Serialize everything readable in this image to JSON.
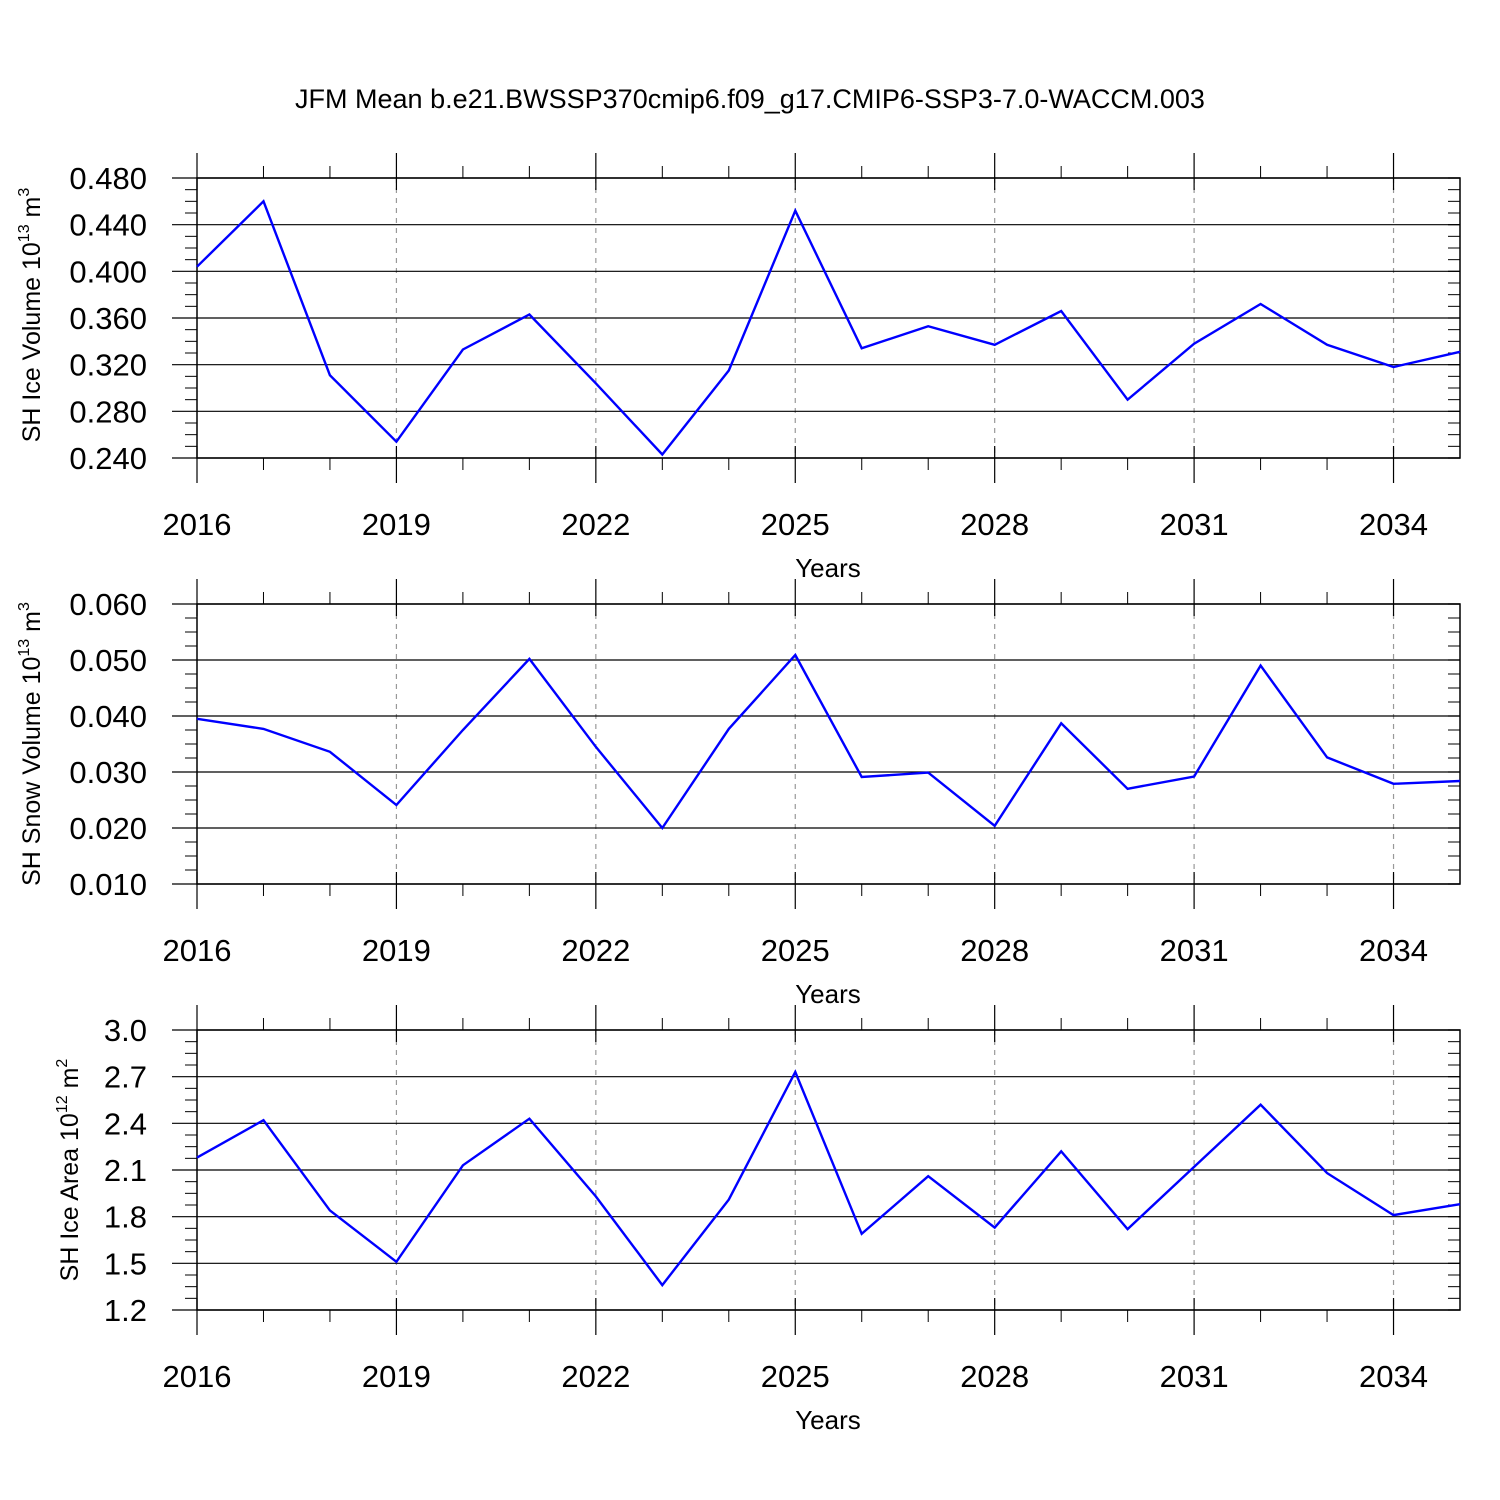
{
  "title": "JFM Mean b.e21.BWSSP370cmip6.f09_g17.CMIP6-SSP3-7.0-WACCM.003",
  "line_color": "#0000ff",
  "chart_data": [
    {
      "type": "line",
      "ylabel": "SH Ice Volume 10",
      "ylabel_exp": "13",
      "ylabel_unit": " m",
      "ylabel_unit_exp": "3",
      "xlabel": "Years",
      "xticks": [
        "2016",
        "2019",
        "2022",
        "2025",
        "2028",
        "2031",
        "2034"
      ],
      "yticks": [
        "0.240",
        "0.280",
        "0.320",
        "0.360",
        "0.400",
        "0.440",
        "0.480"
      ],
      "xlim": [
        2016,
        2035
      ],
      "ylim": [
        0.24,
        0.48
      ],
      "x": [
        2016,
        2017,
        2018,
        2019,
        2020,
        2021,
        2022,
        2023,
        2024,
        2025,
        2026,
        2027,
        2028,
        2029,
        2030,
        2031,
        2032,
        2033,
        2034,
        2035
      ],
      "values": [
        0.404,
        0.46,
        0.311,
        0.254,
        0.333,
        0.363,
        0.304,
        0.243,
        0.315,
        0.452,
        0.334,
        0.353,
        0.337,
        0.366,
        0.29,
        0.338,
        0.372,
        0.337,
        0.318,
        0.331
      ]
    },
    {
      "type": "line",
      "ylabel": "SH Snow Volume 10",
      "ylabel_exp": "13",
      "ylabel_unit": " m",
      "ylabel_unit_exp": "3",
      "xlabel": "Years",
      "xticks": [
        "2016",
        "2019",
        "2022",
        "2025",
        "2028",
        "2031",
        "2034"
      ],
      "yticks": [
        "0.010",
        "0.020",
        "0.030",
        "0.040",
        "0.050",
        "0.060"
      ],
      "xlim": [
        2016,
        2035
      ],
      "ylim": [
        0.01,
        0.06
      ],
      "x": [
        2016,
        2017,
        2018,
        2019,
        2020,
        2021,
        2022,
        2023,
        2024,
        2025,
        2026,
        2027,
        2028,
        2029,
        2030,
        2031,
        2032,
        2033,
        2034,
        2035
      ],
      "values": [
        0.0395,
        0.0377,
        0.0336,
        0.0241,
        0.0375,
        0.0502,
        0.0345,
        0.02,
        0.0377,
        0.0509,
        0.0291,
        0.0299,
        0.0204,
        0.0387,
        0.027,
        0.0292,
        0.049,
        0.0326,
        0.0279,
        0.0284
      ]
    },
    {
      "type": "line",
      "ylabel": "SH Ice Area 10",
      "ylabel_exp": "12",
      "ylabel_unit": " m",
      "ylabel_unit_exp": "2",
      "xlabel": "Years",
      "xticks": [
        "2016",
        "2019",
        "2022",
        "2025",
        "2028",
        "2031",
        "2034"
      ],
      "yticks": [
        "1.2",
        "1.5",
        "1.8",
        "2.1",
        "2.4",
        "2.7",
        "3.0"
      ],
      "xlim": [
        2016,
        2035
      ],
      "ylim": [
        1.2,
        3.0
      ],
      "x": [
        2016,
        2017,
        2018,
        2019,
        2020,
        2021,
        2022,
        2023,
        2024,
        2025,
        2026,
        2027,
        2028,
        2029,
        2030,
        2031,
        2032,
        2033,
        2034,
        2035
      ],
      "values": [
        2.18,
        2.42,
        1.84,
        1.51,
        2.13,
        2.43,
        1.93,
        1.36,
        1.91,
        2.73,
        1.69,
        2.06,
        1.73,
        2.22,
        1.72,
        2.12,
        2.52,
        2.08,
        1.81,
        1.88
      ]
    }
  ]
}
